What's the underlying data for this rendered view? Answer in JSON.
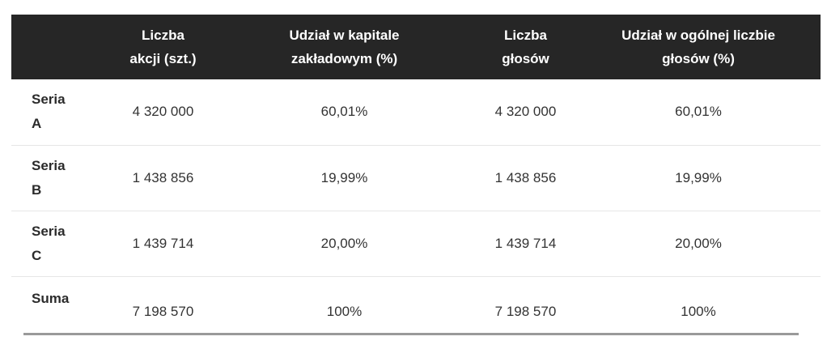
{
  "header": {
    "col0": "",
    "col1": [
      "Liczba",
      "akcji (szt.)"
    ],
    "col2": [
      "Udział w kapitale",
      "zakładowym (%)"
    ],
    "col3": [
      "Liczba",
      "głosów"
    ],
    "col4": [
      "Udział w ogólnej liczbie",
      "głosów (%)"
    ]
  },
  "rows": [
    {
      "label": [
        "Seria",
        "A"
      ],
      "shares": "4 320 000",
      "capital_pct": "60,01%",
      "votes": "4 320 000",
      "votes_pct": "60,01%"
    },
    {
      "label": [
        "Seria",
        "B"
      ],
      "shares": "1 438 856",
      "capital_pct": "19,99%",
      "votes": "1 438 856",
      "votes_pct": "19,99%"
    },
    {
      "label": [
        "Seria",
        "C"
      ],
      "shares": "1 439 714",
      "capital_pct": "20,00%",
      "votes": "1 439 714",
      "votes_pct": "20,00%"
    },
    {
      "label": [
        "Suma"
      ],
      "shares": "7 198 570",
      "capital_pct": "100%",
      "votes": "7 198 570",
      "votes_pct": "100%"
    }
  ],
  "colors": {
    "header_bg": "#262626",
    "header_text": "#ffffff",
    "row_divider": "#e6e6e6",
    "bottom_rule": "#9a9a9a"
  }
}
